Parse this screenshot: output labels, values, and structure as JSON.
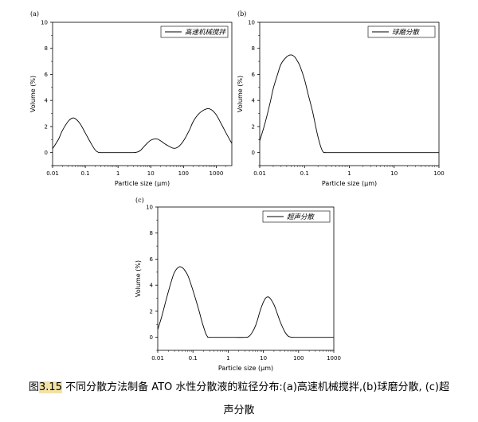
{
  "chart_data": [
    {
      "type": "line",
      "panel_label": "(a)",
      "xlabel": "Particle size (μm)",
      "ylabel": "Volume (%)",
      "xscale": "log",
      "xlim": [
        0.01,
        3000
      ],
      "ylim": [
        -1,
        10
      ],
      "xticks": [
        0.01,
        0.1,
        1,
        10,
        100,
        1000
      ],
      "xtick_labels": [
        "0.01",
        "0.1",
        "1",
        "10",
        "100",
        "1000"
      ],
      "yticks": [
        0,
        2,
        4,
        6,
        8,
        10
      ],
      "ytick_labels": [
        "0",
        "2",
        "4",
        "6",
        "8",
        "10"
      ],
      "legend_position": "top-right",
      "series": [
        {
          "name": "高速机械搅拌",
          "x": [
            0.01,
            0.015,
            0.02,
            0.03,
            0.04,
            0.05,
            0.07,
            0.1,
            0.15,
            0.2,
            0.25,
            0.3,
            0.5,
            1,
            2,
            3,
            4,
            5,
            7,
            10,
            15,
            20,
            30,
            50,
            70,
            100,
            150,
            200,
            300,
            500,
            700,
            1000,
            1500,
            2000,
            3000
          ],
          "y": [
            0.3,
            1.0,
            1.7,
            2.4,
            2.65,
            2.6,
            2.2,
            1.5,
            0.7,
            0.2,
            0.02,
            0,
            0,
            0,
            0,
            0,
            0.05,
            0.2,
            0.6,
            0.95,
            1.05,
            0.9,
            0.6,
            0.33,
            0.45,
            0.9,
            1.7,
            2.4,
            3.0,
            3.35,
            3.3,
            2.9,
            2.1,
            1.5,
            0.7
          ]
        }
      ]
    },
    {
      "type": "line",
      "panel_label": "(b)",
      "xlabel": "Particle size (μm)",
      "ylabel": "Volume (%)",
      "xscale": "log",
      "xlim": [
        0.01,
        100
      ],
      "ylim": [
        -1,
        10
      ],
      "xticks": [
        0.01,
        0.1,
        1,
        10,
        100
      ],
      "xtick_labels": [
        "0.01",
        "0.1",
        "1",
        "10",
        "100"
      ],
      "yticks": [
        0,
        2,
        4,
        6,
        8,
        10
      ],
      "ytick_labels": [
        "0",
        "2",
        "4",
        "6",
        "8",
        "10"
      ],
      "legend_position": "top-right",
      "series": [
        {
          "name": "球磨分散",
          "x": [
            0.01,
            0.013,
            0.017,
            0.02,
            0.025,
            0.03,
            0.04,
            0.05,
            0.06,
            0.07,
            0.08,
            0.1,
            0.12,
            0.15,
            0.18,
            0.2,
            0.23,
            0.26,
            0.3,
            0.5,
            1,
            10,
            100
          ],
          "y": [
            0.9,
            2.2,
            3.8,
            4.9,
            6.0,
            6.8,
            7.35,
            7.5,
            7.35,
            7.0,
            6.6,
            5.6,
            4.5,
            3.2,
            1.9,
            1.2,
            0.45,
            0.05,
            0,
            0,
            0,
            0,
            0
          ]
        }
      ]
    },
    {
      "type": "line",
      "panel_label": "(c)",
      "xlabel": "Particle size (μm)",
      "ylabel": "Volume (%)",
      "xscale": "log",
      "xlim": [
        0.01,
        1000
      ],
      "ylim": [
        -1,
        10
      ],
      "xticks": [
        0.01,
        0.1,
        1,
        10,
        100,
        1000
      ],
      "xtick_labels": [
        "0.01",
        "0.1",
        "1",
        "10",
        "100",
        "1000"
      ],
      "yticks": [
        0,
        2,
        4,
        6,
        8,
        10
      ],
      "ytick_labels": [
        "0",
        "2",
        "4",
        "6",
        "8",
        "10"
      ],
      "legend_position": "top-right",
      "series": [
        {
          "name": "超声分散",
          "x": [
            0.01,
            0.013,
            0.017,
            0.02,
            0.025,
            0.03,
            0.04,
            0.05,
            0.06,
            0.07,
            0.08,
            0.1,
            0.12,
            0.15,
            0.18,
            0.2,
            0.23,
            0.26,
            0.3,
            1,
            3,
            4,
            5,
            6,
            7,
            8,
            10,
            12,
            14,
            16,
            20,
            25,
            30,
            40,
            50,
            60,
            70,
            100,
            1000
          ],
          "y": [
            0.6,
            1.6,
            2.8,
            3.5,
            4.4,
            5.0,
            5.4,
            5.35,
            5.1,
            4.8,
            4.4,
            3.6,
            2.9,
            2.0,
            1.2,
            0.8,
            0.3,
            0.05,
            0,
            0,
            0,
            0.1,
            0.45,
            0.9,
            1.45,
            2.0,
            2.7,
            3.05,
            3.1,
            2.95,
            2.5,
            1.8,
            1.2,
            0.45,
            0.1,
            0.02,
            0,
            0,
            0
          ]
        }
      ]
    }
  ],
  "caption": {
    "prefix": "图",
    "number": "3.15",
    "line1": " 不同分散方法制备 ATO 水性分散液的粒径分布:(a)高速机械搅拌,(b)球磨分散, (c)超",
    "line2": "声分散"
  }
}
